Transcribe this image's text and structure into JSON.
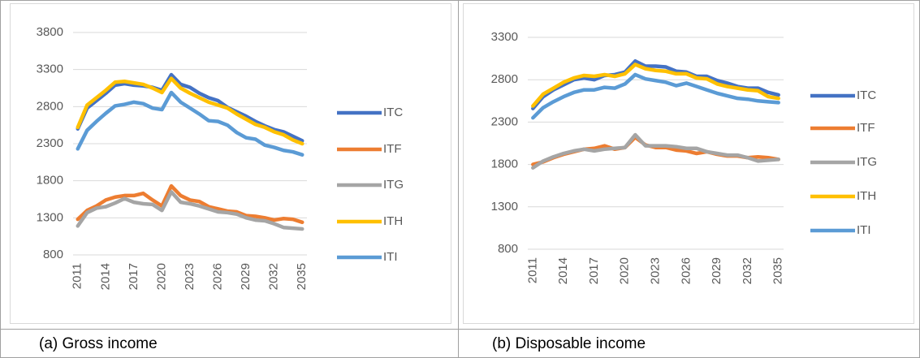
{
  "chart_data": [
    {
      "type": "line",
      "caption": "(a)  Gross income",
      "categories": [
        "2011",
        null,
        null,
        "2014",
        null,
        null,
        "2017",
        null,
        null,
        "2020",
        null,
        null,
        "2023",
        null,
        null,
        "2026",
        null,
        null,
        "2029",
        null,
        null,
        "2032",
        null,
        null,
        "2035"
      ],
      "ylim": [
        800,
        3800
      ],
      "yticks": [
        800,
        1300,
        1800,
        2300,
        2800,
        3300,
        3800
      ],
      "grid": true,
      "legend": "right",
      "series": [
        {
          "name": "ITC",
          "color": "#4472c4",
          "values": [
            2500,
            2780,
            2880,
            2980,
            3090,
            3110,
            3090,
            3080,
            3060,
            3020,
            3230,
            3100,
            3060,
            2980,
            2920,
            2880,
            2790,
            2730,
            2670,
            2600,
            2540,
            2490,
            2460,
            2400,
            2340
          ]
        },
        {
          "name": "ITF",
          "color": "#ed7d31",
          "values": [
            1280,
            1400,
            1460,
            1540,
            1580,
            1600,
            1600,
            1630,
            1540,
            1460,
            1730,
            1600,
            1540,
            1520,
            1450,
            1420,
            1390,
            1380,
            1330,
            1320,
            1300,
            1270,
            1290,
            1280,
            1240
          ]
        },
        {
          "name": "ITG",
          "color": "#a5a5a5",
          "values": [
            1190,
            1370,
            1430,
            1450,
            1500,
            1560,
            1510,
            1490,
            1480,
            1400,
            1650,
            1510,
            1490,
            1460,
            1420,
            1380,
            1370,
            1350,
            1300,
            1270,
            1260,
            1220,
            1170,
            1160,
            1150
          ]
        },
        {
          "name": "ITH",
          "color": "#ffc000",
          "values": [
            2520,
            2820,
            2920,
            3020,
            3130,
            3140,
            3120,
            3100,
            3050,
            2990,
            3180,
            3050,
            2980,
            2920,
            2860,
            2820,
            2780,
            2700,
            2630,
            2560,
            2520,
            2460,
            2420,
            2350,
            2300
          ]
        },
        {
          "name": "ITI",
          "color": "#5b9bd5",
          "values": [
            2230,
            2480,
            2600,
            2710,
            2810,
            2830,
            2860,
            2840,
            2780,
            2760,
            2990,
            2860,
            2780,
            2700,
            2610,
            2600,
            2550,
            2450,
            2380,
            2360,
            2280,
            2250,
            2210,
            2190,
            2150
          ]
        }
      ]
    },
    {
      "type": "line",
      "caption": "(b)  Disposable income",
      "categories": [
        "2011",
        null,
        null,
        "2014",
        null,
        null,
        "2017",
        null,
        null,
        "2020",
        null,
        null,
        "2023",
        null,
        null,
        "2026",
        null,
        null,
        "2029",
        null,
        null,
        "2032",
        null,
        null,
        "2035"
      ],
      "ylim": [
        800,
        3300
      ],
      "yticks": [
        800,
        1300,
        1800,
        2300,
        2800,
        3300
      ],
      "grid": true,
      "legend": "right",
      "series": [
        {
          "name": "ITC",
          "color": "#4472c4",
          "values": [
            2460,
            2600,
            2680,
            2740,
            2800,
            2820,
            2800,
            2850,
            2860,
            2890,
            3020,
            2960,
            2960,
            2950,
            2900,
            2890,
            2840,
            2840,
            2790,
            2760,
            2720,
            2700,
            2700,
            2650,
            2620
          ]
        },
        {
          "name": "ITF",
          "color": "#ed7d31",
          "values": [
            1800,
            1830,
            1880,
            1920,
            1950,
            1980,
            1990,
            2020,
            1980,
            2000,
            2120,
            2030,
            2000,
            2000,
            1970,
            1960,
            1930,
            1950,
            1920,
            1900,
            1900,
            1880,
            1890,
            1880,
            1860
          ]
        },
        {
          "name": "ITG",
          "color": "#a5a5a5",
          "values": [
            1760,
            1840,
            1890,
            1930,
            1960,
            1980,
            1960,
            1980,
            1990,
            2000,
            2150,
            2020,
            2020,
            2020,
            2010,
            1990,
            1990,
            1950,
            1930,
            1910,
            1910,
            1880,
            1840,
            1850,
            1860
          ]
        },
        {
          "name": "ITH",
          "color": "#ffc000",
          "values": [
            2490,
            2630,
            2700,
            2770,
            2820,
            2850,
            2840,
            2860,
            2840,
            2870,
            2980,
            2930,
            2910,
            2900,
            2870,
            2870,
            2820,
            2810,
            2750,
            2720,
            2700,
            2680,
            2670,
            2600,
            2580
          ]
        },
        {
          "name": "ITI",
          "color": "#5b9bd5",
          "values": [
            2350,
            2470,
            2540,
            2600,
            2650,
            2680,
            2680,
            2710,
            2700,
            2750,
            2860,
            2810,
            2790,
            2770,
            2730,
            2760,
            2720,
            2680,
            2640,
            2610,
            2580,
            2570,
            2550,
            2540,
            2530
          ]
        }
      ]
    }
  ]
}
